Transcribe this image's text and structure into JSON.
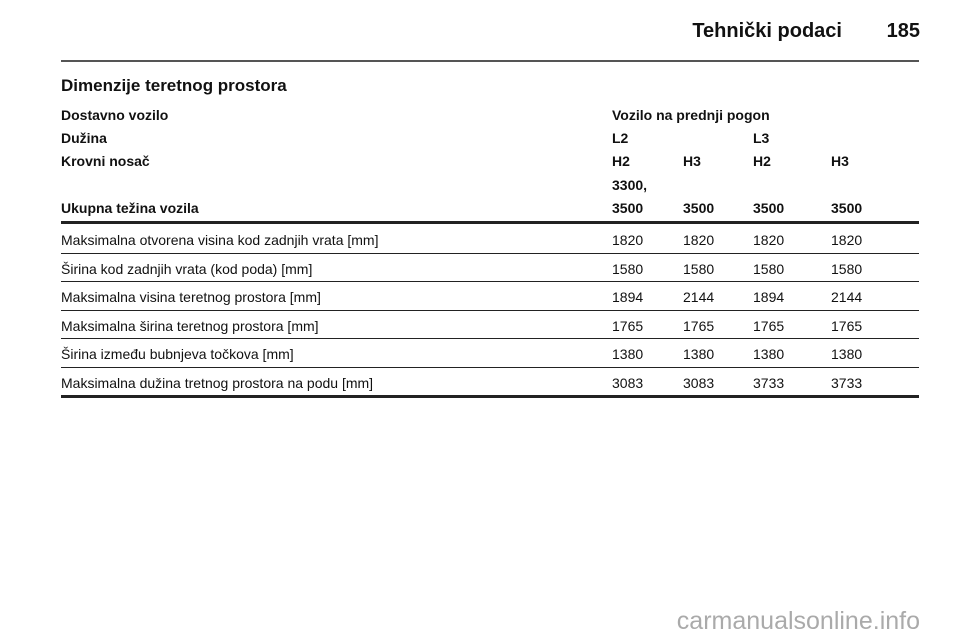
{
  "header": {
    "title": "Tehnički podaci",
    "page_number": "185"
  },
  "section_title": "Dimenzije teretnog prostora",
  "table": {
    "header_rows": [
      {
        "label": "Dostavno vozilo",
        "cells": [
          "Vozilo na prednji pogon",
          "",
          "",
          ""
        ]
      },
      {
        "label": "Dužina",
        "cells": [
          "L2",
          "",
          "L3",
          ""
        ]
      },
      {
        "label": "Krovni nosač",
        "cells": [
          "H2",
          "H3",
          "H2",
          "H3"
        ]
      },
      {
        "label": "Ukupna težina vozila",
        "cells": [
          "3300,",
          "",
          "",
          ""
        ],
        "cells2": [
          "3500",
          "3500",
          "3500",
          "3500"
        ]
      }
    ],
    "rows": [
      {
        "label": "Maksimalna otvorena visina kod zadnjih vrata [mm]",
        "values": [
          "1820",
          "1820",
          "1820",
          "1820"
        ]
      },
      {
        "label": "Širina kod zadnjih vrata (kod poda) [mm]",
        "values": [
          "1580",
          "1580",
          "1580",
          "1580"
        ]
      },
      {
        "label": "Maksimalna visina teretnog prostora [mm]",
        "values": [
          "1894",
          "2144",
          "1894",
          "2144"
        ]
      },
      {
        "label": "Maksimalna širina teretnog prostora [mm]",
        "values": [
          "1765",
          "1765",
          "1765",
          "1765"
        ]
      },
      {
        "label": "Širina između bubnjeva točkova [mm]",
        "values": [
          "1380",
          "1380",
          "1380",
          "1380"
        ]
      },
      {
        "label": "Maksimalna dužina tretnog prostora na podu [mm]",
        "values": [
          "3083",
          "3083",
          "3733",
          "3733"
        ]
      }
    ]
  },
  "watermark": "carmanualsonline.info"
}
